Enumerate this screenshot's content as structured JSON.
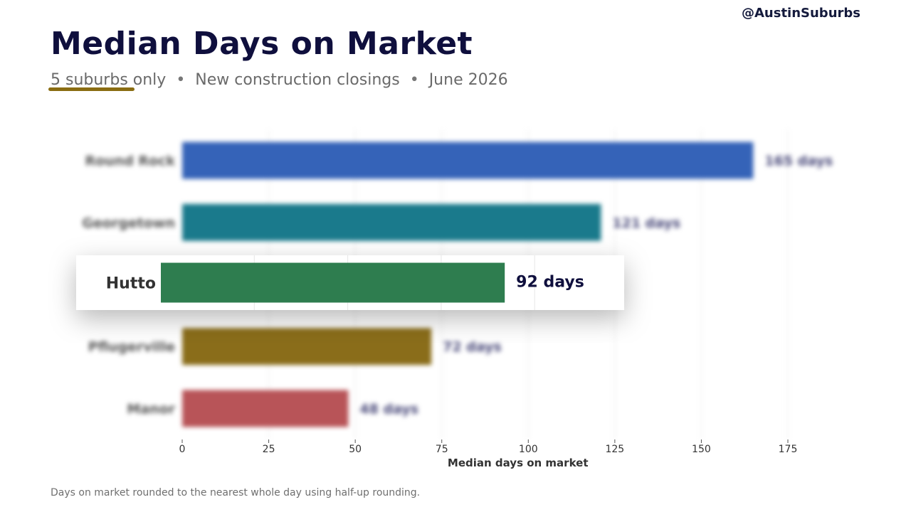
{
  "header": {
    "handle": "@AustinSuburbs",
    "title": "Median Days on Market",
    "subtitle_parts": [
      "5 suburbs only",
      "New construction closings",
      "June 2026"
    ],
    "subtitle_sep": "•",
    "footnote": "Days on market rounded to the nearest whole day using half-up rounding."
  },
  "colors": {
    "title": "#0f0f3d",
    "highlight_underline": "#8a6d12",
    "grid": "#e6e6e6"
  },
  "chart_data": {
    "type": "bar",
    "orientation": "horizontal",
    "categories": [
      "Round Rock",
      "Georgetown",
      "Hutto",
      "Pflugerville",
      "Manor"
    ],
    "values": [
      165,
      121,
      92,
      72,
      48
    ],
    "value_labels": [
      "165 days",
      "121 days",
      "92 days",
      "72 days",
      "48 days"
    ],
    "colors": [
      "#3563b8",
      "#1a7a8c",
      "#2e7d4f",
      "#8a6d1a",
      "#b85458"
    ],
    "highlight_category": "Hutto",
    "xlabel": "Median days on market",
    "ylabel": "",
    "xlim": [
      0,
      175
    ],
    "xticks": [
      0,
      25,
      50,
      75,
      100,
      125,
      150,
      175
    ],
    "grid": "vertical",
    "legend": "none"
  }
}
